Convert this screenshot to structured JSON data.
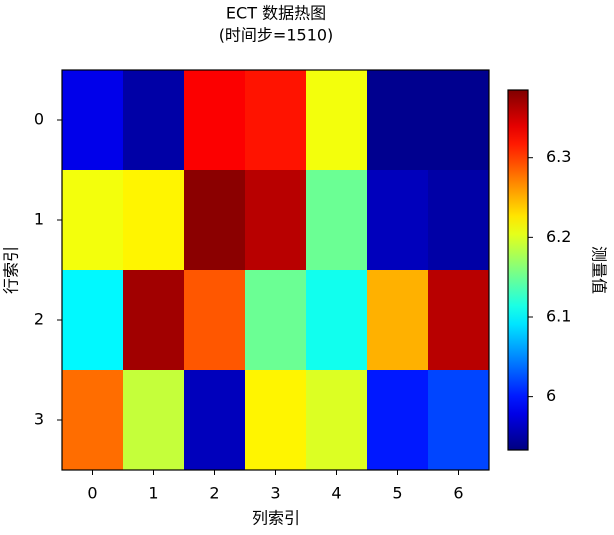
{
  "chart_data": {
    "type": "heatmap",
    "title": "ECT 数据热图",
    "subtitle": "(时间步=1510)",
    "x_label": "列索引",
    "y_label": "行索引",
    "colorbar_label": "测量值",
    "x_categories": [
      "0",
      "1",
      "2",
      "3",
      "4",
      "5",
      "6"
    ],
    "y_categories": [
      "0",
      "1",
      "2",
      "3"
    ],
    "z": [
      [
        5.98,
        5.95,
        6.33,
        6.32,
        6.21,
        5.94,
        5.94
      ],
      [
        6.21,
        6.22,
        6.38,
        6.36,
        6.15,
        5.96,
        5.95
      ],
      [
        6.1,
        6.37,
        6.29,
        6.15,
        6.11,
        6.25,
        6.36
      ],
      [
        6.28,
        6.19,
        5.96,
        6.22,
        6.2,
        6.0,
        6.02
      ]
    ],
    "colormap": "jet",
    "clim": [
      5.933,
      6.385
    ],
    "cticks": [
      6.0,
      6.1,
      6.2,
      6.3
    ]
  }
}
